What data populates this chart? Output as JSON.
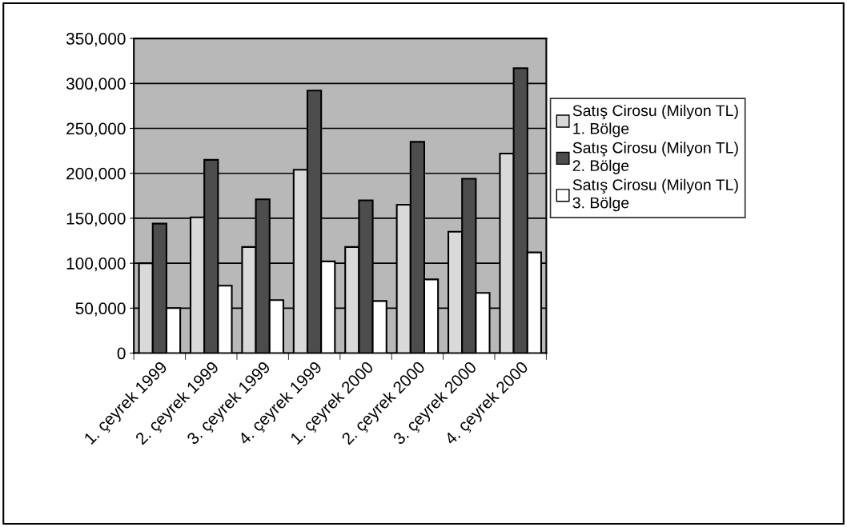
{
  "chart_data": {
    "type": "bar",
    "categories": [
      "1. çeyrek 1999",
      "2. çeyrek 1999",
      "3. çeyrek 1999",
      "4. çeyrek 1999",
      "1. çeyrek 2000",
      "2. çeyrek 2000",
      "3. çeyrek 2000",
      "4. çeyrek 2000"
    ],
    "series": [
      {
        "name": "Satış Cirosu (Milyon TL)\n1. Bölge",
        "color": "#d9d9d9",
        "values": [
          100000,
          151000,
          118000,
          204000,
          118000,
          165000,
          135000,
          222000
        ]
      },
      {
        "name": "Satış Cirosu (Milyon TL)\n2. Bölge",
        "color": "#4d4d4d",
        "values": [
          144000,
          215000,
          171000,
          292000,
          170000,
          235000,
          194000,
          317000
        ]
      },
      {
        "name": "Satış Cirosu (Milyon TL)\n3. Bölge",
        "color": "#ffffff",
        "values": [
          50000,
          75000,
          59000,
          102000,
          58000,
          82000,
          67000,
          112000
        ]
      }
    ],
    "ylim": [
      0,
      350000
    ],
    "yticks": [
      {
        "value": 0,
        "label": "0"
      },
      {
        "value": 50000,
        "label": "50,000"
      },
      {
        "value": 100000,
        "label": "100,000"
      },
      {
        "value": 150000,
        "label": "150,000"
      },
      {
        "value": 200000,
        "label": "200,000"
      },
      {
        "value": 250000,
        "label": "250,000"
      },
      {
        "value": 300000,
        "label": "300,000"
      },
      {
        "value": 350000,
        "label": "350,000"
      }
    ],
    "grid": "y",
    "legend": "right"
  }
}
